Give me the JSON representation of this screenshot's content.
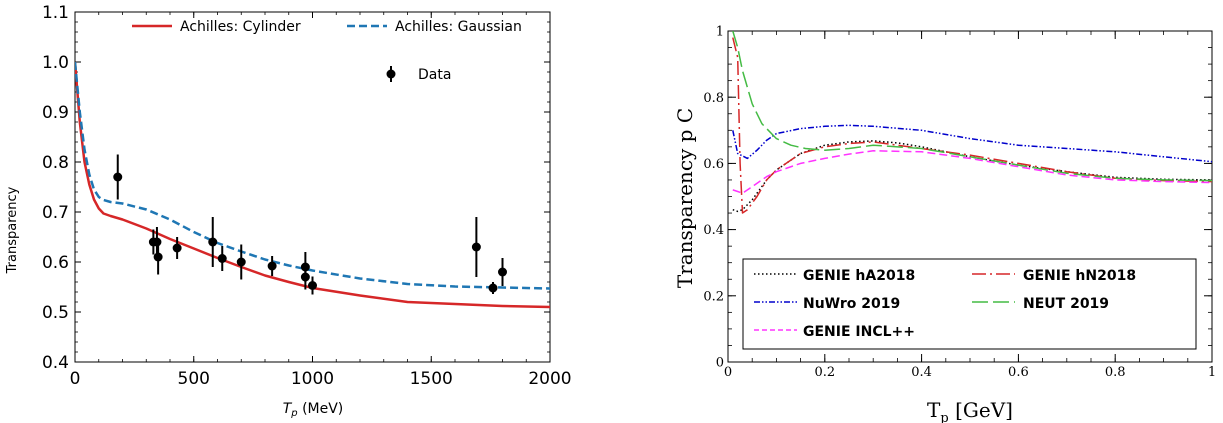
{
  "chart_data": [
    {
      "type": "line",
      "title": "",
      "xlabel_main": "T",
      "xlabel_sub": "p",
      "xlabel_unit": " (MeV)",
      "ylabel": "Transparency",
      "xlim": [
        0,
        2000
      ],
      "ylim": [
        0.4,
        1.1
      ],
      "xticks": [
        0,
        500,
        1000,
        1500,
        2000
      ],
      "yticks": [
        0.4,
        0.5,
        0.6,
        0.7,
        0.8,
        0.9,
        1.0,
        1.1
      ],
      "ytick_labels": [
        "0.4",
        "0.5",
        "0.6",
        "0.7",
        "0.8",
        "0.9",
        "1.0",
        "1.1"
      ],
      "grid": false,
      "legend": "top",
      "series": [
        {
          "name": "Achilles: Cylinder",
          "color": "#d62728",
          "style": "solid",
          "x": [
            0,
            20,
            40,
            60,
            80,
            100,
            120,
            150,
            200,
            300,
            400,
            500,
            600,
            700,
            800,
            900,
            1000,
            1200,
            1400,
            1600,
            1800,
            2000
          ],
          "y": [
            1.0,
            0.88,
            0.8,
            0.755,
            0.725,
            0.707,
            0.697,
            0.692,
            0.685,
            0.667,
            0.646,
            0.627,
            0.608,
            0.59,
            0.573,
            0.56,
            0.548,
            0.533,
            0.52,
            0.516,
            0.512,
            0.51
          ]
        },
        {
          "name": "Achilles: Gaussian",
          "color": "#1f77b4",
          "style": "dashed",
          "x": [
            0,
            20,
            40,
            60,
            80,
            100,
            120,
            150,
            200,
            300,
            400,
            500,
            600,
            700,
            800,
            900,
            1000,
            1200,
            1400,
            1600,
            1800,
            2000
          ],
          "y": [
            1.0,
            0.9,
            0.825,
            0.775,
            0.745,
            0.73,
            0.724,
            0.72,
            0.717,
            0.705,
            0.685,
            0.66,
            0.638,
            0.621,
            0.605,
            0.593,
            0.583,
            0.567,
            0.556,
            0.551,
            0.549,
            0.547
          ]
        }
      ],
      "data_points": {
        "name": "Data",
        "color": "#000000",
        "points": [
          {
            "x": 180,
            "y": 0.77,
            "err": 0.045
          },
          {
            "x": 330,
            "y": 0.64,
            "err": 0.025
          },
          {
            "x": 345,
            "y": 0.64,
            "err": 0.03
          },
          {
            "x": 350,
            "y": 0.61,
            "err": 0.035
          },
          {
            "x": 430,
            "y": 0.628,
            "err": 0.022
          },
          {
            "x": 580,
            "y": 0.64,
            "err": 0.05
          },
          {
            "x": 620,
            "y": 0.607,
            "err": 0.025
          },
          {
            "x": 700,
            "y": 0.6,
            "err": 0.035
          },
          {
            "x": 830,
            "y": 0.592,
            "err": 0.02
          },
          {
            "x": 970,
            "y": 0.59,
            "err": 0.03
          },
          {
            "x": 970,
            "y": 0.57,
            "err": 0.025
          },
          {
            "x": 1000,
            "y": 0.553,
            "err": 0.018
          },
          {
            "x": 1690,
            "y": 0.63,
            "err": 0.06
          },
          {
            "x": 1760,
            "y": 0.548,
            "err": 0.012
          },
          {
            "x": 1800,
            "y": 0.58,
            "err": 0.028
          }
        ]
      }
    },
    {
      "type": "line",
      "title": "",
      "xlabel_main": "T",
      "xlabel_sub": "p",
      "xlabel_unit": " [GeV]",
      "ylabel": "Transparency p C",
      "xlim": [
        0,
        1
      ],
      "ylim": [
        0,
        1
      ],
      "xticks": [
        0,
        0.2,
        0.4,
        0.6,
        0.8,
        1
      ],
      "yticks": [
        0,
        0.2,
        0.4,
        0.6,
        0.8,
        1
      ],
      "ytick_labels": [
        "0",
        "0.2",
        "0.4",
        "0.6",
        "0.8",
        "1"
      ],
      "grid": false,
      "legend": "bottom",
      "series": [
        {
          "name": "GENIE hA2018",
          "color": "#000000",
          "style": "dotted",
          "x": [
            0.01,
            0.02,
            0.03,
            0.05,
            0.08,
            0.1,
            0.15,
            0.2,
            0.25,
            0.3,
            0.35,
            0.4,
            0.5,
            0.6,
            0.7,
            0.8,
            0.9,
            1.0
          ],
          "y": [
            0.46,
            0.455,
            0.46,
            0.49,
            0.55,
            0.58,
            0.63,
            0.655,
            0.665,
            0.668,
            0.662,
            0.65,
            0.62,
            0.595,
            0.575,
            0.558,
            0.552,
            0.55
          ]
        },
        {
          "name": "GENIE hN2018",
          "color": "#d62728",
          "style": "dashdot",
          "x": [
            0.01,
            0.02,
            0.025,
            0.03,
            0.04,
            0.06,
            0.08,
            0.1,
            0.15,
            0.2,
            0.25,
            0.3,
            0.35,
            0.4,
            0.5,
            0.6,
            0.7,
            0.8,
            0.9,
            1.0
          ],
          "y": [
            0.98,
            0.92,
            0.6,
            0.45,
            0.46,
            0.5,
            0.55,
            0.58,
            0.63,
            0.65,
            0.66,
            0.665,
            0.655,
            0.645,
            0.625,
            0.6,
            0.575,
            0.555,
            0.548,
            0.545
          ]
        },
        {
          "name": "NuWro 2019",
          "color": "#0000cc",
          "style": "dashdotdot",
          "x": [
            0.01,
            0.02,
            0.04,
            0.06,
            0.08,
            0.1,
            0.15,
            0.2,
            0.25,
            0.3,
            0.4,
            0.5,
            0.6,
            0.7,
            0.8,
            0.9,
            1.0
          ],
          "y": [
            0.7,
            0.63,
            0.615,
            0.64,
            0.67,
            0.69,
            0.705,
            0.712,
            0.715,
            0.712,
            0.7,
            0.675,
            0.655,
            0.645,
            0.635,
            0.62,
            0.605
          ]
        },
        {
          "name": "NEUT 2019",
          "color": "#44bb44",
          "style": "longdash",
          "x": [
            0.01,
            0.02,
            0.03,
            0.05,
            0.07,
            0.1,
            0.13,
            0.16,
            0.2,
            0.25,
            0.3,
            0.4,
            0.5,
            0.6,
            0.7,
            0.8,
            0.9,
            1.0
          ],
          "y": [
            1.0,
            0.95,
            0.88,
            0.78,
            0.72,
            0.675,
            0.655,
            0.645,
            0.64,
            0.645,
            0.655,
            0.645,
            0.62,
            0.595,
            0.57,
            0.555,
            0.55,
            0.548
          ]
        },
        {
          "name": "GENIE INCL++",
          "color": "#ff33ff",
          "style": "dashed",
          "x": [
            0.01,
            0.02,
            0.03,
            0.05,
            0.08,
            0.1,
            0.15,
            0.2,
            0.25,
            0.3,
            0.4,
            0.5,
            0.6,
            0.7,
            0.8,
            0.9,
            1.0
          ],
          "y": [
            0.52,
            0.515,
            0.51,
            0.53,
            0.56,
            0.575,
            0.6,
            0.615,
            0.628,
            0.638,
            0.635,
            0.615,
            0.59,
            0.565,
            0.55,
            0.545,
            0.542
          ]
        }
      ]
    }
  ]
}
